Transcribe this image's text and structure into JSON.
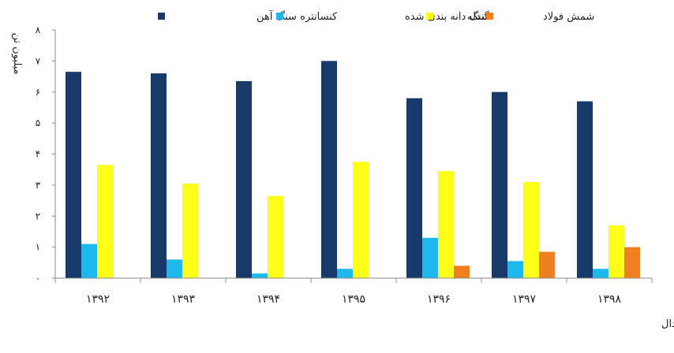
{
  "chart_data": {
    "type": "bar",
    "title": "",
    "ylabel": "میلیون تن",
    "xlabel": "",
    "ylim": [
      0,
      8
    ],
    "yticks": [
      0,
      1,
      2,
      3,
      4,
      5,
      6,
      7,
      8
    ],
    "ytick_labels": [
      "۰",
      "۱",
      "۲",
      "۳",
      "۴",
      "۵",
      "۶",
      "۷",
      "۸"
    ],
    "grid": false,
    "legend_position": "top",
    "categories": [
      "۱۳۹۲",
      "۱۳۹۳",
      "۱۳۹۴",
      "۱۳۹۵",
      "۱۳۹۶",
      "۱۳۹۷",
      "۱۳۹۸"
    ],
    "series": [
      {
        "name": "کنسانتره سنگ آهن",
        "color": "#173A6B",
        "values": [
          6.65,
          6.6,
          6.35,
          7.0,
          5.8,
          6.0,
          5.7
        ]
      },
      {
        "name": "سنگ دانه بندی شده",
        "color": "#1DB8EC",
        "values": [
          1.1,
          0.6,
          0.15,
          0.3,
          1.3,
          0.55,
          0.3
        ]
      },
      {
        "name": "گندله",
        "color": "#FFFF1A",
        "values": [
          3.65,
          3.05,
          2.65,
          3.75,
          3.45,
          3.1,
          1.7
        ]
      },
      {
        "name": "شمش فولاد",
        "color": "#F07F22",
        "values": [
          0,
          0,
          0,
          0,
          0.4,
          0.85,
          1.0
        ]
      }
    ],
    "source_text": "منبع: کدال"
  }
}
